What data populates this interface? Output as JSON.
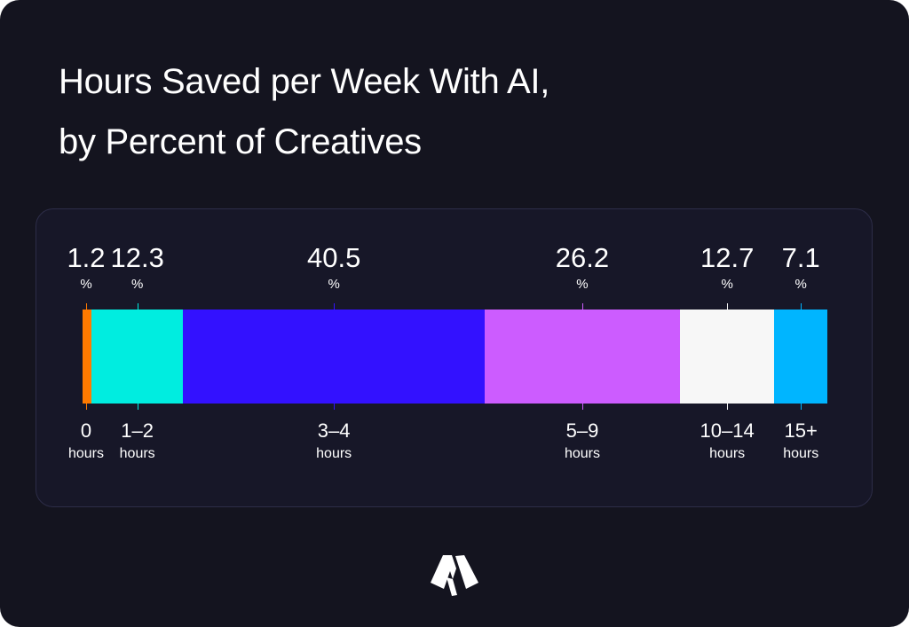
{
  "header": {
    "title_line1": "Hours Saved per Week With AI,",
    "title_line2": "by Percent of Creatives"
  },
  "logo": {
    "icon": "brand-logo-icon"
  },
  "chart_data": {
    "type": "bar",
    "orientation": "horizontal-stacked-100",
    "title": "Hours Saved per Week With AI, by Percent of Creatives",
    "xlabel": "",
    "ylabel": "",
    "unit": "%",
    "categories": [
      "0 hours",
      "1–2 hours",
      "3–4 hours",
      "5–9 hours",
      "10–14 hours",
      "15+ hours"
    ],
    "values": [
      1.2,
      12.3,
      40.5,
      26.2,
      12.7,
      7.1
    ],
    "colors": [
      "#ff7a00",
      "#00ede0",
      "#3311ff",
      "#cc5cff",
      "#f7f7f7",
      "#00b5ff"
    ],
    "legend": "none",
    "grid": false,
    "segments": [
      {
        "value": "1.2",
        "pct": "%",
        "cat": "0",
        "unit": "hours"
      },
      {
        "value": "12.3",
        "pct": "%",
        "cat": "1–2",
        "unit": "hours"
      },
      {
        "value": "40.5",
        "pct": "%",
        "cat": "3–4",
        "unit": "hours"
      },
      {
        "value": "26.2",
        "pct": "%",
        "cat": "5–9",
        "unit": "hours"
      },
      {
        "value": "12.7",
        "pct": "%",
        "cat": "10–14",
        "unit": "hours"
      },
      {
        "value": "7.1",
        "pct": "%",
        "cat": "15+",
        "unit": "hours"
      }
    ]
  }
}
